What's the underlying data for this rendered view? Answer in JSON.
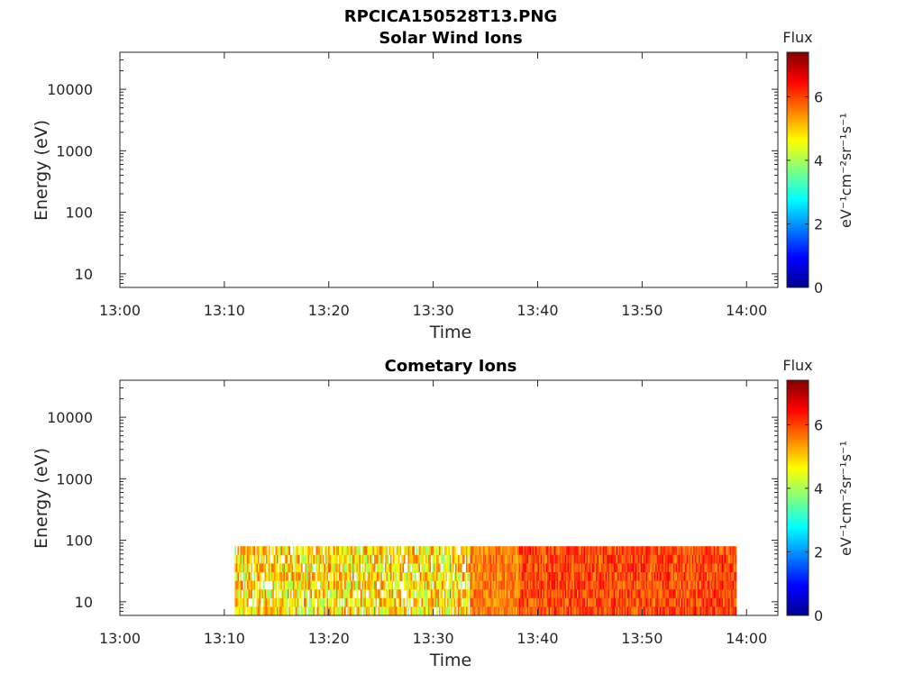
{
  "figure": {
    "filename": "RPCICA150528T13.PNG"
  },
  "colormap": "jet",
  "chart_data": [
    {
      "type": "heatmap",
      "title": "Solar Wind Ions",
      "xlabel": "Time",
      "ylabel": "Energy (eV)",
      "x_ticks": [
        "13:00",
        "13:10",
        "13:20",
        "13:30",
        "13:40",
        "13:50",
        "14:00"
      ],
      "x_range_minutes": [
        0,
        63
      ],
      "y_scale": "log",
      "y_ticks": [
        10,
        100,
        1000,
        10000
      ],
      "y_tick_labels": [
        "10",
        "100",
        "1000",
        "10000"
      ],
      "y_range": [
        6,
        40000
      ],
      "colorbar": {
        "label": "Flux",
        "units": "eV⁻¹cm⁻²sr⁻¹s⁻¹",
        "range": [
          0,
          7.4
        ],
        "ticks": [
          0,
          2,
          4,
          6
        ]
      },
      "data": {
        "present": false,
        "start_minute": null,
        "end_minute": null,
        "energy_range": null
      }
    },
    {
      "type": "heatmap",
      "title": "Cometary Ions",
      "xlabel": "Time",
      "ylabel": "Energy (eV)",
      "x_ticks": [
        "13:00",
        "13:10",
        "13:20",
        "13:30",
        "13:40",
        "13:50",
        "14:00"
      ],
      "x_range_minutes": [
        0,
        63
      ],
      "y_scale": "log",
      "y_ticks": [
        10,
        100,
        1000,
        10000
      ],
      "y_tick_labels": [
        "10",
        "100",
        "1000",
        "10000"
      ],
      "y_range": [
        6,
        40000
      ],
      "colorbar": {
        "label": "Flux",
        "units": "eV⁻¹cm⁻²sr⁻¹s⁻¹",
        "range": [
          0,
          7.4
        ],
        "ticks": [
          0,
          2,
          4,
          6
        ]
      },
      "data": {
        "present": true,
        "start_minute": 11,
        "end_minute": 59,
        "energy_range": [
          6,
          80
        ],
        "segments": [
          {
            "start_minute": 11.0,
            "end_minute": 33.5,
            "mean_flux": 4.8,
            "variability": 1.0
          },
          {
            "start_minute": 33.5,
            "end_minute": 38.2,
            "mean_flux": 5.6,
            "variability": 0.5
          },
          {
            "start_minute": 38.2,
            "end_minute": 59.0,
            "mean_flux": 6.0,
            "variability": 0.6
          }
        ]
      }
    }
  ]
}
